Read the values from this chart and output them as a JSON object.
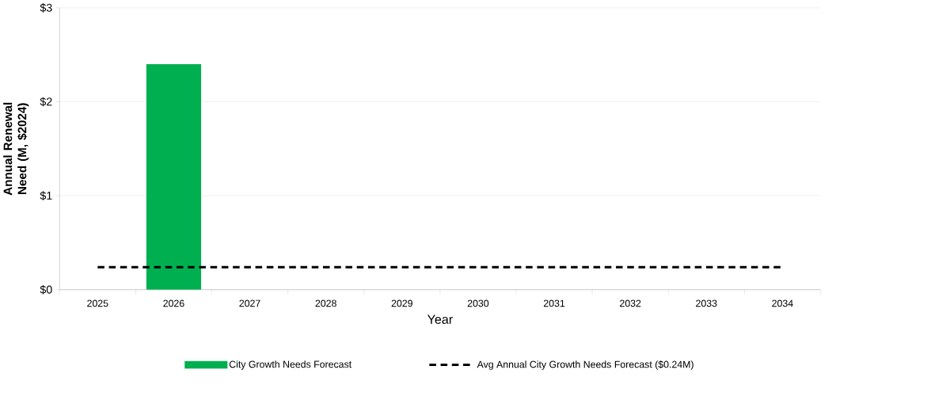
{
  "chart_data": {
    "type": "bar",
    "xlabel": "Year",
    "ylabel": "Annual Renewal Need (M, $2024)",
    "categories": [
      "2025",
      "2026",
      "2027",
      "2028",
      "2029",
      "2030",
      "2031",
      "2032",
      "2033",
      "2034"
    ],
    "series": [
      {
        "name": "City Growth Needs Forecast",
        "color": "#00b050",
        "values": [
          0,
          2.4,
          0,
          0,
          0,
          0,
          0,
          0,
          0,
          0
        ]
      },
      {
        "name": "Avg Annual City Growth Needs Forecast ($0.24M)",
        "type": "line",
        "line_style": "dashed",
        "color": "#000000",
        "values": [
          0.24,
          0.24,
          0.24,
          0.24,
          0.24,
          0.24,
          0.24,
          0.24,
          0.24,
          0.24
        ]
      }
    ],
    "ylim": [
      0,
      3
    ],
    "yticks": [
      {
        "value": 0,
        "label": "$0"
      },
      {
        "value": 1,
        "label": "$1"
      },
      {
        "value": 2,
        "label": "$2"
      },
      {
        "value": 3,
        "label": "$3"
      }
    ],
    "grid": "y",
    "legend": "bottom"
  }
}
